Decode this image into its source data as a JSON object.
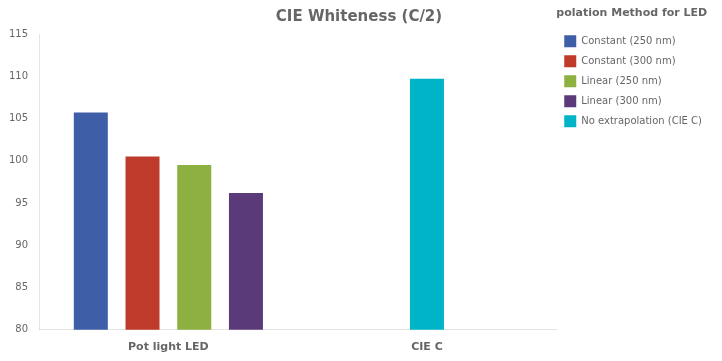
{
  "chart_data": {
    "type": "bar",
    "title": "CIE Whiteness (C/2)",
    "legend_title": "Extrapolation Method for LED Data:",
    "categories": [
      "Pot light LED",
      "CIE C"
    ],
    "series": [
      {
        "name": "Constant (250 nm)",
        "color": "#3F5EA8",
        "values": [
          105.7,
          null
        ]
      },
      {
        "name": "Constant (300 nm)",
        "color": "#BE3A2A",
        "values": [
          100.5,
          null
        ]
      },
      {
        "name": "Linear (250 nm)",
        "color": "#8DB040",
        "values": [
          99.5,
          null
        ]
      },
      {
        "name": "Linear (300 nm)",
        "color": "#5B3A7A",
        "values": [
          96.2,
          null
        ]
      },
      {
        "name": "No extrapolation (CIE C)",
        "color": "#00B4C8",
        "values": [
          null,
          109.7
        ]
      }
    ],
    "ylim": [
      80,
      115
    ],
    "yticks": [
      80,
      85,
      90,
      95,
      100,
      105,
      110,
      115
    ],
    "grid": false,
    "legend": "right"
  }
}
